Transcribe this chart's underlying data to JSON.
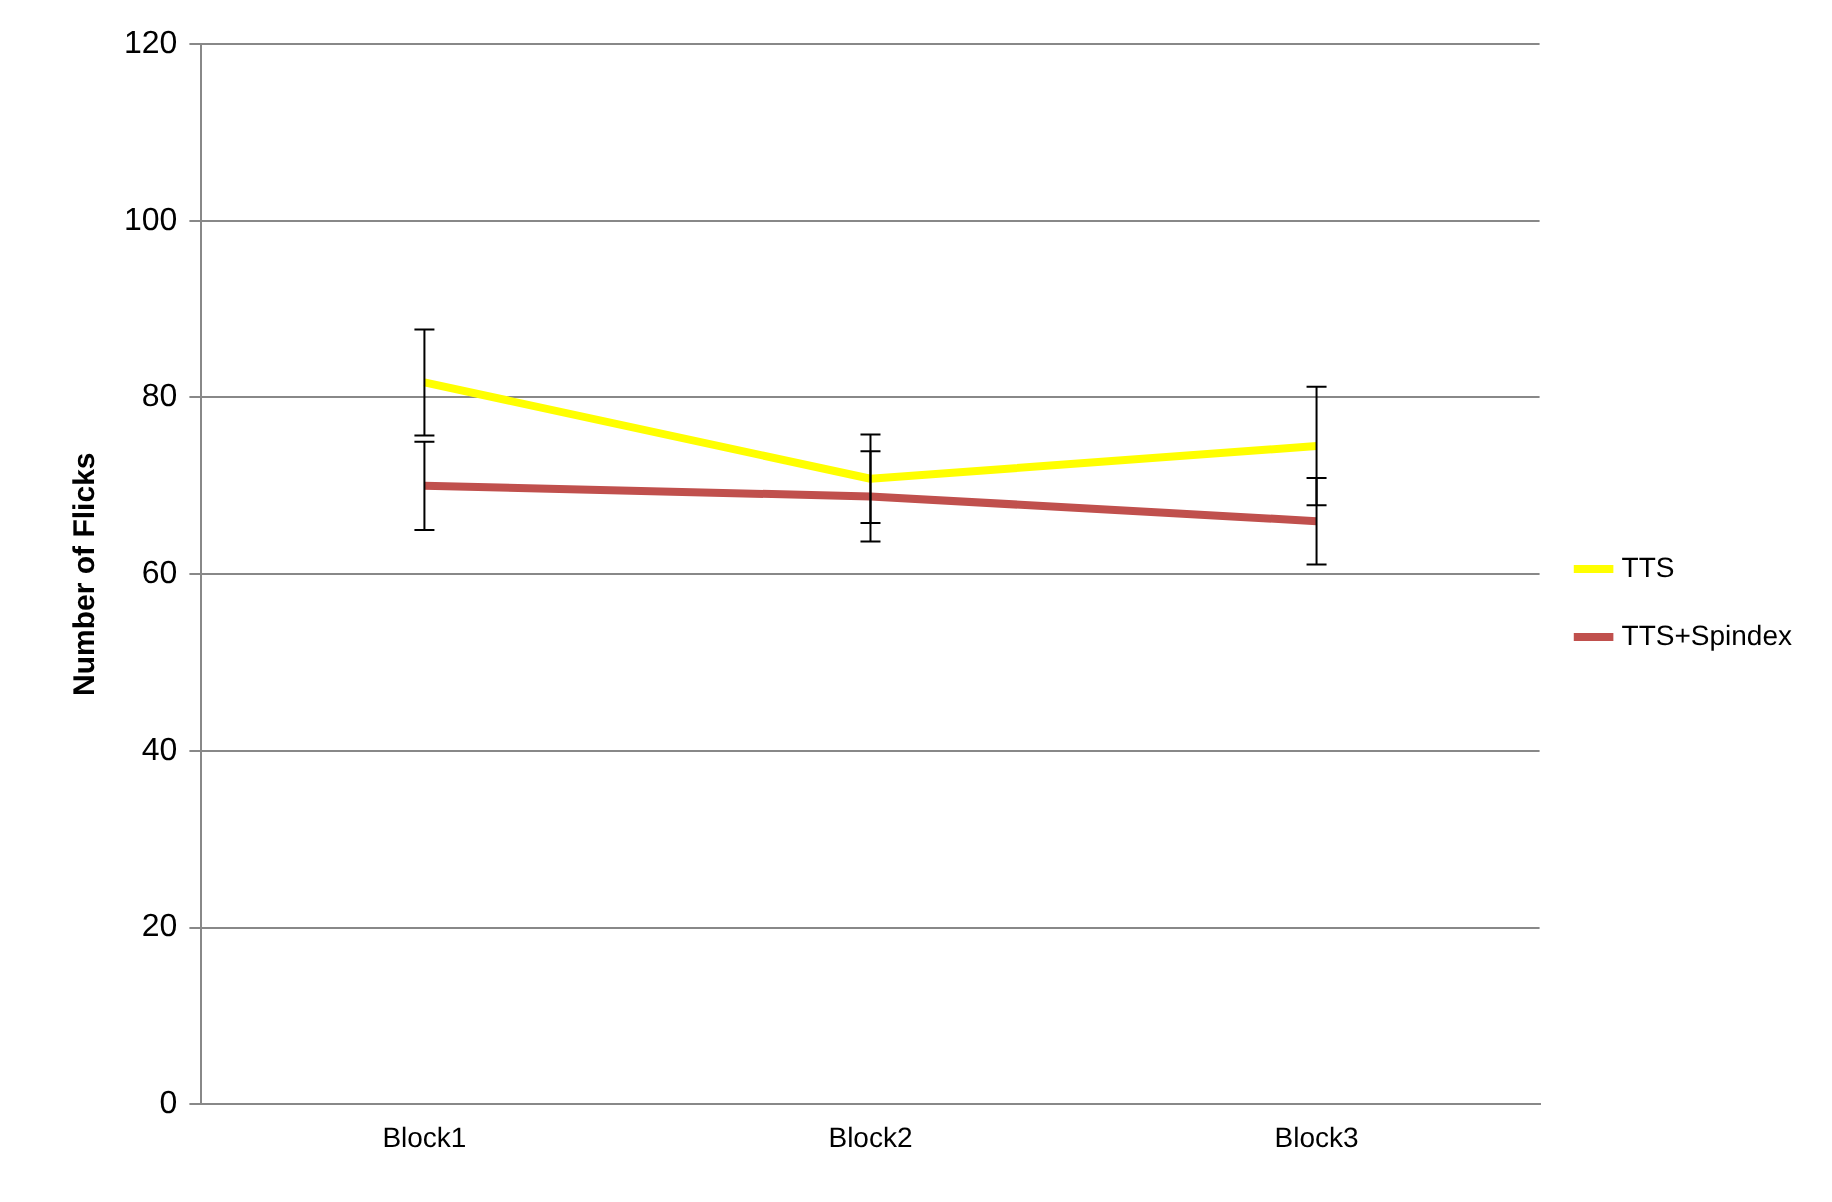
{
  "chart_data": {
    "type": "line",
    "ylabel": "Number of Flicks",
    "categories": [
      "Block1",
      "Block2",
      "Block3"
    ],
    "series": [
      {
        "name": "TTS",
        "color": "#ffff00",
        "values": [
          81.7,
          70.8,
          74.5
        ],
        "errors": [
          6,
          5,
          6.7
        ]
      },
      {
        "name": "TTS+Spindex",
        "color": "#c0504d",
        "values": [
          70,
          68.8,
          66
        ],
        "errors": [
          5,
          5.1,
          4.9
        ]
      }
    ],
    "ylim": [
      0,
      120
    ],
    "yticks": [
      0,
      20,
      40,
      60,
      80,
      100,
      120
    ],
    "grid": "y",
    "legend": "right",
    "marker": "none",
    "line_style": "solid"
  }
}
